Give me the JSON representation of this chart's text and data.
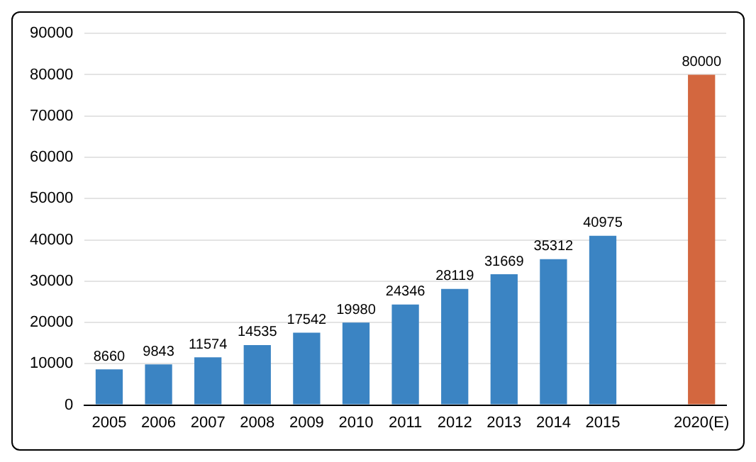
{
  "chart_data": {
    "type": "bar",
    "categories": [
      "2005",
      "2006",
      "2007",
      "2008",
      "2009",
      "2010",
      "2011",
      "2012",
      "2013",
      "2014",
      "2015",
      null,
      "2020(E)"
    ],
    "values": [
      8660,
      9843,
      11574,
      14535,
      17542,
      19980,
      24346,
      28119,
      31669,
      35312,
      40975,
      null,
      80000
    ],
    "colors": [
      "#3b84c3",
      "#3b84c3",
      "#3b84c3",
      "#3b84c3",
      "#3b84c3",
      "#3b84c3",
      "#3b84c3",
      "#3b84c3",
      "#3b84c3",
      "#3b84c3",
      "#3b84c3",
      "#3b84c3",
      "#d3673f"
    ],
    "ylim": [
      0,
      90000
    ],
    "yticks": [
      0,
      10000,
      20000,
      30000,
      40000,
      50000,
      60000,
      70000,
      80000,
      90000
    ],
    "grid": "y",
    "data_labels": true,
    "legend": false
  }
}
